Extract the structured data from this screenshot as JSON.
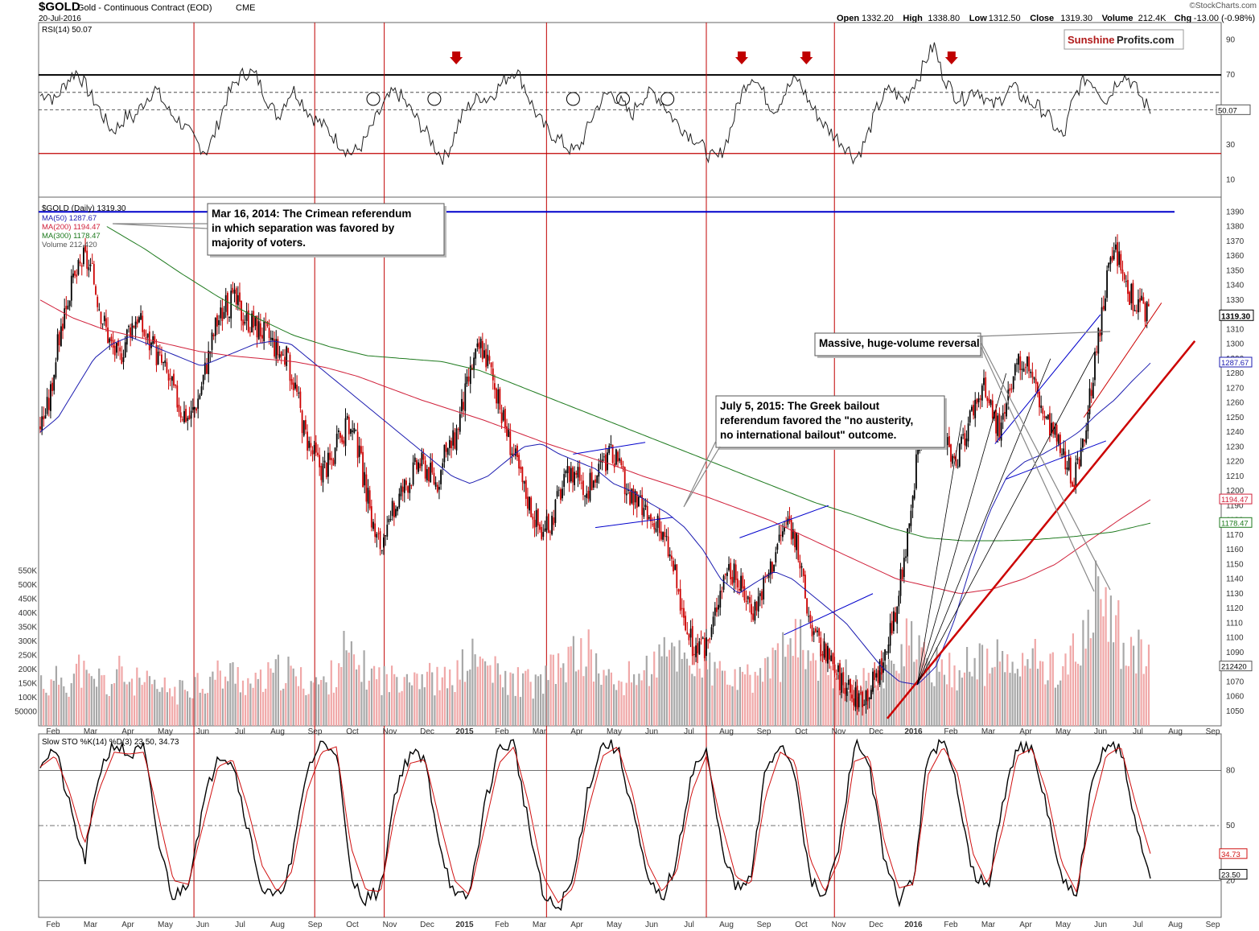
{
  "header": {
    "symbol": "$GOLD",
    "name": "Gold - Continuous Contract (EOD)",
    "exchange": "CME",
    "date": "20-Jul-2016",
    "watermark": "©StockCharts.com",
    "quote": [
      {
        "label": "Open",
        "value": "1332.20"
      },
      {
        "label": "High",
        "value": "1338.80"
      },
      {
        "label": "Low",
        "value": "1312.50"
      },
      {
        "label": "Close",
        "value": "1319.30"
      },
      {
        "label": "Volume",
        "value": "212.4K"
      },
      {
        "label": "Chg",
        "value": "-13.00 (-0.98%)"
      }
    ]
  },
  "logo": {
    "brand_red": "Sunshine",
    "brand_dark": "Profits.com"
  },
  "colors": {
    "up": "#000000",
    "down": "#cc0000",
    "ma50": "#1b1bb0",
    "ma200": "#d0203a",
    "ma300": "#1e7a1e",
    "event_line": "#c00000",
    "resistance": "#0000cc",
    "trend": "#cc0000",
    "volume_up": "#a8a8a8",
    "volume_down": "#f0a8a8"
  },
  "chart_data": [
    {
      "type": "line",
      "title": "RSI(14) 50.07",
      "indicator": "RSI(14)",
      "current": 50.07,
      "current_label": "50.07",
      "ylim": [
        0,
        100
      ],
      "y_ticks": [
        10,
        30,
        50,
        70,
        90
      ],
      "reference_lines": [
        70,
        60,
        50,
        25
      ],
      "series": [
        {
          "name": "RSI(14)",
          "values": [
            58,
            60,
            55,
            62,
            68,
            72,
            66,
            58,
            52,
            44,
            38,
            41,
            47,
            45,
            52,
            58,
            62,
            55,
            48,
            45,
            40,
            35,
            30,
            26,
            34,
            46,
            58,
            65,
            70,
            72,
            69,
            60,
            52,
            46,
            55,
            62,
            57,
            50,
            45,
            42,
            38,
            33,
            29,
            25,
            27,
            32,
            40,
            48,
            55,
            60,
            58,
            52,
            46,
            40,
            34,
            27,
            22,
            30,
            42,
            50,
            54,
            58,
            56,
            60,
            65,
            70,
            73,
            65,
            55,
            46,
            40,
            36,
            33,
            29,
            26,
            30,
            40,
            50,
            56,
            60,
            57,
            52,
            46,
            55,
            58,
            60,
            56,
            50,
            44,
            40,
            36,
            33,
            28,
            23,
            22,
            30,
            42,
            56,
            66,
            70,
            62,
            54,
            50,
            58,
            64,
            68,
            60,
            52,
            46,
            40,
            36,
            32,
            28,
            22,
            28,
            38,
            50,
            58,
            62,
            58,
            55,
            64,
            70,
            80,
            87,
            72,
            64,
            58,
            56,
            60,
            62,
            57,
            52,
            55,
            60,
            63,
            58,
            55,
            53,
            50,
            45,
            38,
            34,
            52,
            62,
            68,
            66,
            60,
            55,
            64,
            70,
            68,
            62,
            55,
            50
          ]
        }
      ],
      "event_arrows": [
        "2014-12-29",
        "2015-08-20",
        "2015-10-12",
        "2016-02-08"
      ]
    },
    {
      "type": "candlestick",
      "title": "$GOLD (Daily) 1319.30",
      "last_close": 1319.3,
      "last_label": "1319.30",
      "ylim": [
        1040,
        1400
      ],
      "y_ticks": [
        1050,
        1060,
        1070,
        1080,
        1090,
        1100,
        1110,
        1120,
        1130,
        1140,
        1150,
        1160,
        1170,
        1180,
        1190,
        1200,
        1210,
        1220,
        1230,
        1240,
        1250,
        1260,
        1270,
        1280,
        1290,
        1300,
        1310,
        1320,
        1330,
        1340,
        1350,
        1360,
        1370,
        1380,
        1390
      ],
      "x_labels": [
        "Feb",
        "Mar",
        "Apr",
        "May",
        "Jun",
        "Jul",
        "Aug",
        "Sep",
        "Oct",
        "Nov",
        "Dec",
        "2015",
        "Feb",
        "Mar",
        "Apr",
        "May",
        "Jun",
        "Jul",
        "Aug",
        "Sep",
        "Oct",
        "Nov",
        "Dec",
        "2016",
        "Feb",
        "Mar",
        "Apr",
        "May",
        "Jun",
        "Jul",
        "Aug",
        "Sep"
      ],
      "close_path": [
        1245,
        1260,
        1300,
        1330,
        1345,
        1360,
        1345,
        1320,
        1300,
        1290,
        1310,
        1320,
        1305,
        1295,
        1285,
        1270,
        1255,
        1250,
        1265,
        1290,
        1315,
        1325,
        1330,
        1320,
        1315,
        1310,
        1305,
        1295,
        1290,
        1270,
        1240,
        1225,
        1215,
        1220,
        1235,
        1245,
        1230,
        1200,
        1170,
        1160,
        1185,
        1200,
        1210,
        1220,
        1215,
        1205,
        1225,
        1235,
        1260,
        1285,
        1300,
        1285,
        1260,
        1240,
        1220,
        1200,
        1185,
        1170,
        1180,
        1200,
        1210,
        1215,
        1200,
        1210,
        1220,
        1225,
        1210,
        1195,
        1190,
        1180,
        1175,
        1165,
        1145,
        1110,
        1095,
        1090,
        1100,
        1130,
        1150,
        1140,
        1130,
        1120,
        1135,
        1150,
        1170,
        1180,
        1160,
        1120,
        1100,
        1090,
        1080,
        1070,
        1060,
        1060,
        1065,
        1075,
        1090,
        1115,
        1150,
        1200,
        1240,
        1255,
        1250,
        1230,
        1215,
        1240,
        1260,
        1270,
        1255,
        1240,
        1265,
        1285,
        1290,
        1270,
        1250,
        1240,
        1225,
        1210,
        1215,
        1260,
        1300,
        1340,
        1365,
        1345,
        1330,
        1325,
        1320
      ],
      "overlays": [
        {
          "name": "MA(50)",
          "label": "MA(50) 1287.67",
          "value": 1287.67,
          "value_label": "1287.67",
          "values": [
            1240,
            1250,
            1270,
            1290,
            1300,
            1305,
            1300,
            1295,
            1290,
            1285,
            1290,
            1295,
            1300,
            1302,
            1300,
            1290,
            1280,
            1270,
            1260,
            1250,
            1240,
            1230,
            1220,
            1210,
            1205,
            1210,
            1220,
            1230,
            1232,
            1225,
            1220,
            1215,
            1205,
            1200,
            1192,
            1185,
            1175,
            1160,
            1140,
            1130,
            1138,
            1145,
            1140,
            1130,
            1120,
            1110,
            1095,
            1080,
            1070,
            1068,
            1080,
            1110,
            1150,
            1185,
            1210,
            1220,
            1225,
            1232,
            1240,
            1252,
            1262,
            1275,
            1287
          ]
        },
        {
          "name": "MA(200)",
          "label": "MA(200) 1194.47",
          "value": 1194.47,
          "value_label": "1194.47",
          "values": [
            1330,
            1318,
            1310,
            1305,
            1300,
            1295,
            1292,
            1290,
            1288,
            1284,
            1278,
            1270,
            1262,
            1255,
            1248,
            1240,
            1232,
            1225,
            1218,
            1210,
            1203,
            1196,
            1188,
            1180,
            1170,
            1160,
            1150,
            1140,
            1135,
            1130,
            1133,
            1140,
            1150,
            1165,
            1180,
            1194
          ]
        },
        {
          "name": "MA(300)",
          "label": "MA(300) 1178.47",
          "value": 1178.47,
          "value_label": "1178.47",
          "values": [
            1380,
            1365,
            1348,
            1332,
            1318,
            1306,
            1298,
            1292,
            1290,
            1288,
            1282,
            1272,
            1262,
            1252,
            1242,
            1232,
            1222,
            1212,
            1202,
            1192,
            1184,
            1175,
            1168,
            1166,
            1166,
            1167,
            1169,
            1172,
            1178
          ]
        }
      ],
      "resistance_level": 1390,
      "events": [
        {
          "date": "2014-03-16",
          "text_lines": [
            "Mar 16, 2014: The Crimean referendum",
            "in which separation was favored by",
            "majority of voters."
          ]
        },
        {
          "date": "2015-07-05",
          "text_lines": [
            "July 5, 2015: The Greek bailout",
            "referendum favored the \"no austerity,",
            "no international bailout\" outcome."
          ]
        },
        {
          "date": "2016-03-01",
          "text_lines": [
            "Massive, huge-volume reversal"
          ]
        }
      ],
      "event_dates": [
        "2014-05-28",
        "2014-09-04",
        "2014-10-31",
        "2015-03-13",
        "2015-07-22",
        "2015-11-04"
      ]
    },
    {
      "type": "bar",
      "title": "Volume 212,420",
      "current": 212420,
      "current_label": "212420",
      "ylim": [
        0,
        600000
      ],
      "y_ticks": [
        50000,
        100000,
        150000,
        200000,
        250000,
        300000,
        350000,
        400000,
        450000,
        500000,
        550000
      ],
      "y_tick_labels": [
        "50000",
        "100K",
        "150K",
        "200K",
        "250K",
        "300K",
        "350K",
        "400K",
        "450K",
        "500K",
        "550K"
      ],
      "values_k": [
        170,
        140,
        190,
        160,
        220,
        150,
        180,
        140,
        200,
        170,
        160,
        150,
        130,
        140,
        120,
        150,
        170,
        160,
        190,
        180,
        200,
        160,
        150,
        170,
        190,
        210,
        180,
        160,
        170,
        150,
        190,
        280,
        230,
        210,
        190,
        180,
        170,
        200,
        210,
        190,
        180,
        160,
        170,
        200,
        250,
        240,
        220,
        180,
        160,
        170,
        160,
        150,
        190,
        210,
        240,
        260,
        280,
        220,
        180,
        150,
        170,
        190,
        200,
        230,
        250,
        280,
        260,
        240,
        220,
        200,
        190,
        170,
        160,
        180,
        200,
        230,
        260,
        290,
        300,
        270,
        250,
        220,
        200,
        180,
        170,
        160,
        180,
        200,
        280,
        320,
        250,
        240,
        220,
        210,
        200,
        230,
        240,
        220,
        240,
        230,
        210,
        220,
        250,
        230,
        210,
        230,
        260,
        300,
        420,
        530,
        390,
        330,
        270,
        260,
        210
      ]
    },
    {
      "type": "line",
      "title": "Slow STO %K(14) %D(3) 23.50, 34.73",
      "indicator": "Slow STO %K(14) %D(3)",
      "current_k": 23.5,
      "current_d": 34.73,
      "current_k_label": "23.50",
      "current_d_label": "34.73",
      "ylim": [
        0,
        100
      ],
      "y_ticks": [
        20,
        50,
        80
      ],
      "reference_lines": [
        80,
        50,
        20
      ],
      "series": [
        {
          "name": "%K(14)",
          "values": [
            85,
            92,
            60,
            30,
            80,
            95,
            88,
            92,
            40,
            10,
            20,
            60,
            90,
            85,
            50,
            15,
            10,
            30,
            80,
            95,
            92,
            20,
            10,
            15,
            70,
            90,
            85,
            40,
            10,
            12,
            60,
            92,
            95,
            50,
            10,
            5,
            20,
            70,
            95,
            92,
            60,
            20,
            10,
            30,
            80,
            90,
            40,
            15,
            20,
            80,
            95,
            80,
            20,
            10,
            40,
            95,
            85,
            30,
            10,
            20,
            90,
            95,
            70,
            25,
            15,
            60,
            95,
            90,
            60,
            20,
            10,
            70,
            95,
            92,
            50,
            23
          ]
        },
        {
          "name": "%D(3)",
          "values": [
            82,
            88,
            68,
            40,
            70,
            90,
            89,
            90,
            55,
            20,
            18,
            50,
            82,
            86,
            60,
            28,
            14,
            25,
            68,
            90,
            93,
            38,
            15,
            14,
            58,
            84,
            86,
            52,
            20,
            12,
            48,
            84,
            93,
            62,
            22,
            8,
            16,
            58,
            88,
            93,
            68,
            30,
            14,
            25,
            68,
            88,
            52,
            22,
            18,
            66,
            90,
            85,
            32,
            14,
            32,
            85,
            88,
            42,
            16,
            18,
            78,
            93,
            78,
            35,
            18,
            48,
            88,
            92,
            68,
            30,
            14,
            56,
            88,
            93,
            62,
            34.73
          ]
        }
      ]
    }
  ]
}
